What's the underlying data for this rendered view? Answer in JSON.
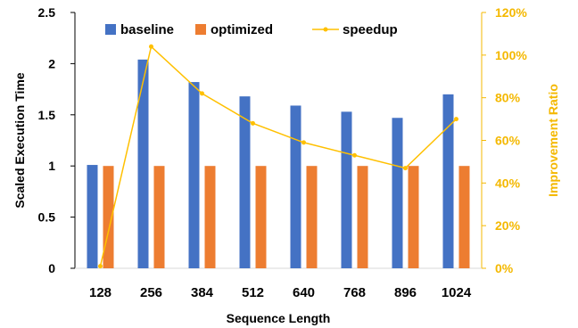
{
  "chart_data": {
    "type": "bar",
    "categories": [
      "128",
      "256",
      "384",
      "512",
      "640",
      "768",
      "896",
      "1024"
    ],
    "series": [
      {
        "name": "baseline",
        "type": "bar",
        "axis": "left",
        "color": "#4472C4",
        "values": [
          1.01,
          2.04,
          1.82,
          1.68,
          1.59,
          1.53,
          1.47,
          1.7
        ]
      },
      {
        "name": "optimized",
        "type": "bar",
        "axis": "left",
        "color": "#ED7D31",
        "values": [
          1,
          1,
          1,
          1,
          1,
          1,
          1,
          1
        ]
      },
      {
        "name": "speedup",
        "type": "line",
        "axis": "right",
        "color": "#FFC000",
        "values": [
          1,
          104,
          82,
          68,
          59,
          53,
          47,
          70
        ]
      }
    ],
    "xlabel": "Sequence Length",
    "ylabel": "Scaled Execution Time",
    "y2label": "Improvement Ratio",
    "ylim": [
      0,
      2.5
    ],
    "y2lim": [
      0,
      120
    ],
    "yticks": [
      "0",
      "0.5",
      "1",
      "1.5",
      "2",
      "2.5"
    ],
    "y2ticks": [
      "0%",
      "20%",
      "40%",
      "60%",
      "80%",
      "100%",
      "120%"
    ],
    "legend_position": "top",
    "grid": false,
    "axis_colors": {
      "left": "#000000",
      "right": "#F4B800"
    }
  }
}
